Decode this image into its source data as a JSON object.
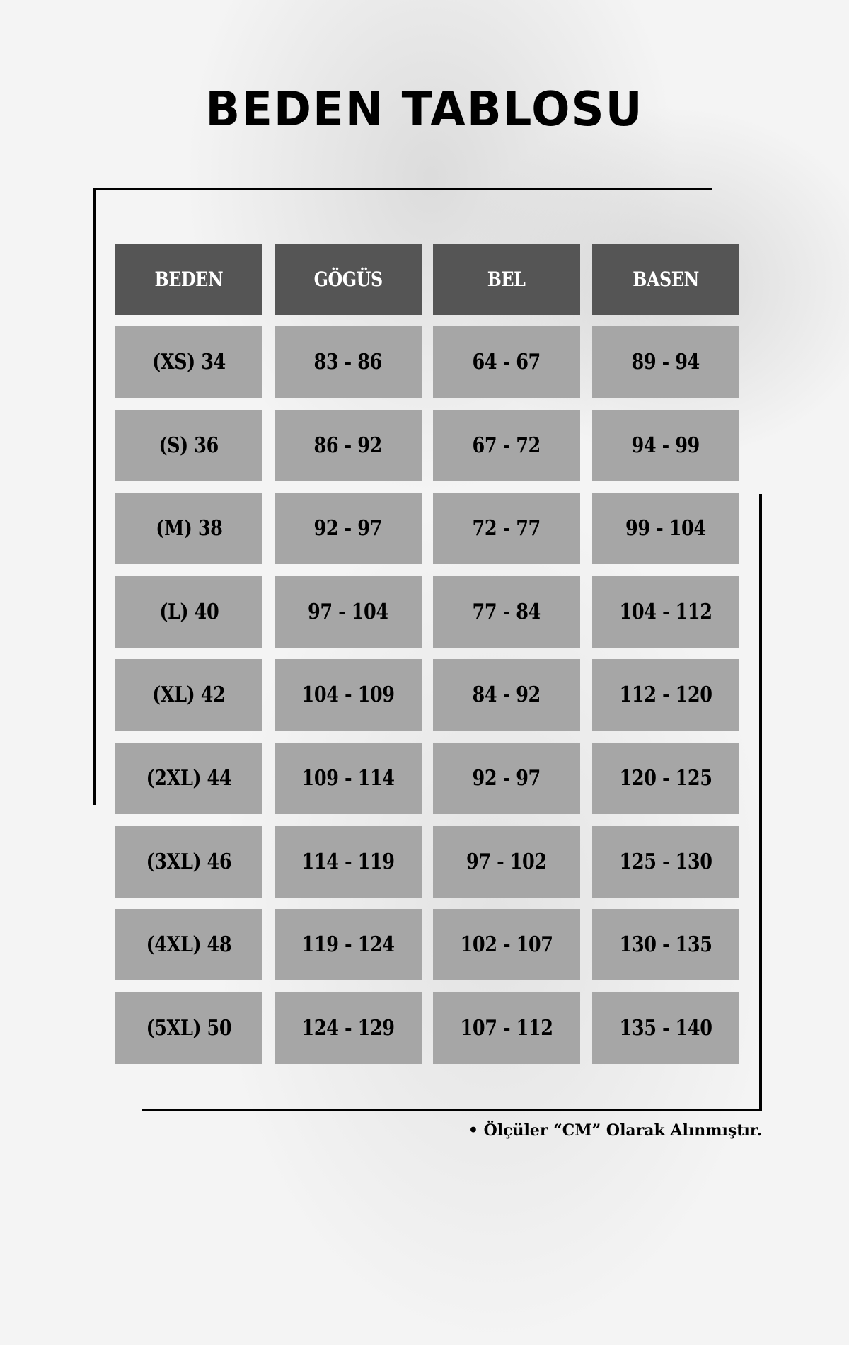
{
  "title": "BEDEN TABLOSU",
  "colors": {
    "header_bg": "#555555",
    "cell_bg": "#a6a6a6",
    "background": "#f4f4f4"
  },
  "table": {
    "headers": [
      "BEDEN",
      "GÖGÜS",
      "BEL",
      "BASEN"
    ],
    "rows": [
      [
        "(XS) 34",
        "83 - 86",
        "64 - 67",
        "89 - 94"
      ],
      [
        "(S) 36",
        "86 - 92",
        "67 - 72",
        "94 - 99"
      ],
      [
        "(M) 38",
        "92 - 97",
        "72 - 77",
        "99 - 104"
      ],
      [
        "(L) 40",
        "97 - 104",
        "77 - 84",
        "104 - 112"
      ],
      [
        "(XL) 42",
        "104 - 109",
        "84 - 92",
        "112 - 120"
      ],
      [
        "(2XL) 44",
        "109 - 114",
        "92 - 97",
        "120 - 125"
      ],
      [
        "(3XL) 46",
        "114 - 119",
        "97 - 102",
        "125 - 130"
      ],
      [
        "(4XL) 48",
        "119 - 124",
        "102 - 107",
        "130 - 135"
      ],
      [
        "(5XL) 50",
        "124 - 129",
        "107 - 112",
        "135 - 140"
      ]
    ]
  },
  "note": "• Ölçüler “CM” Olarak Alınmıştır."
}
